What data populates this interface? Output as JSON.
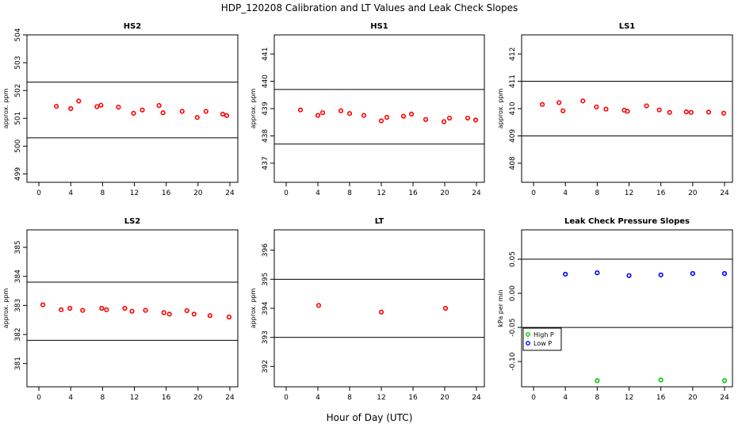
{
  "figure": {
    "title": "HDP_120208  Calibration and LT Values and Leak Check Slopes",
    "xlabel": "Hour of Day (UTC)"
  },
  "chart_data": [
    {
      "id": "hs2",
      "type": "scatter",
      "title": "HS2",
      "ylabel": "approx. ppm",
      "xlim": [
        -1.5,
        25
      ],
      "ylim": [
        498.7,
        504
      ],
      "xticks": [
        0,
        4,
        8,
        12,
        16,
        20,
        24
      ],
      "yticks": [
        499,
        500,
        501,
        502,
        503,
        504
      ],
      "hlines": [
        500.3,
        502.3
      ],
      "series": [
        {
          "name": "HS2",
          "color": "#ff0000",
          "x": [
            2.2,
            4.0,
            5.0,
            7.3,
            7.8,
            10.0,
            11.9,
            13.0,
            15.1,
            15.6,
            18.0,
            19.9,
            21.0,
            23.1,
            23.6
          ],
          "y": [
            501.43,
            501.35,
            501.62,
            501.42,
            501.47,
            501.4,
            501.18,
            501.3,
            501.46,
            501.2,
            501.25,
            501.03,
            501.25,
            501.15,
            501.1
          ]
        }
      ]
    },
    {
      "id": "hs1",
      "type": "scatter",
      "title": "HS1",
      "ylabel": "approx. ppm",
      "xlim": [
        -1.5,
        25
      ],
      "ylim": [
        436.3,
        441.7
      ],
      "xticks": [
        0,
        4,
        8,
        12,
        16,
        20,
        24
      ],
      "yticks": [
        437,
        438,
        439,
        440,
        441
      ],
      "hlines": [
        437.7,
        439.7
      ],
      "series": [
        {
          "name": "HS1",
          "color": "#ff0000",
          "x": [
            1.8,
            4.0,
            4.6,
            6.9,
            8.0,
            9.8,
            12.0,
            12.7,
            14.8,
            15.8,
            17.6,
            19.9,
            20.6,
            22.9,
            23.9
          ],
          "y": [
            438.95,
            438.75,
            438.85,
            438.92,
            438.82,
            438.75,
            438.55,
            438.68,
            438.72,
            438.8,
            438.6,
            438.52,
            438.65,
            438.65,
            438.58
          ]
        }
      ]
    },
    {
      "id": "ls1",
      "type": "scatter",
      "title": "LS1",
      "ylabel": "approx. ppm",
      "xlim": [
        -1.5,
        25
      ],
      "ylim": [
        407.3,
        412.7
      ],
      "xticks": [
        0,
        4,
        8,
        12,
        16,
        20,
        24
      ],
      "yticks": [
        408,
        409,
        410,
        411,
        412
      ],
      "hlines": [
        409.0,
        411.0
      ],
      "series": [
        {
          "name": "LS1",
          "color": "#ff0000",
          "x": [
            1.1,
            3.2,
            3.7,
            6.2,
            7.9,
            9.1,
            11.4,
            11.8,
            14.2,
            15.8,
            17.1,
            19.2,
            19.8,
            22.0,
            23.9
          ],
          "y": [
            410.15,
            410.22,
            409.92,
            410.28,
            410.06,
            409.98,
            409.94,
            409.9,
            410.1,
            409.95,
            409.86,
            409.88,
            409.86,
            409.87,
            409.83
          ]
        }
      ]
    },
    {
      "id": "ls2",
      "type": "scatter",
      "title": "LS2",
      "ylabel": "approx. ppm",
      "xlim": [
        -1.5,
        25
      ],
      "ylim": [
        380.2,
        385.6
      ],
      "xticks": [
        0,
        4,
        8,
        12,
        16,
        20,
        24
      ],
      "yticks": [
        381,
        382,
        383,
        384,
        385
      ],
      "hlines": [
        381.8,
        383.8
      ],
      "series": [
        {
          "name": "LS2",
          "color": "#ff0000",
          "x": [
            0.5,
            2.8,
            3.9,
            5.5,
            7.9,
            8.5,
            10.8,
            11.7,
            13.4,
            15.7,
            16.4,
            18.6,
            19.5,
            21.5,
            23.9
          ],
          "y": [
            383.02,
            382.85,
            382.9,
            382.83,
            382.9,
            382.85,
            382.9,
            382.8,
            382.83,
            382.75,
            382.7,
            382.82,
            382.7,
            382.65,
            382.6
          ]
        }
      ]
    },
    {
      "id": "lt",
      "type": "scatter",
      "title": "LT",
      "ylabel": "approx. ppm",
      "xlim": [
        -1.5,
        25
      ],
      "ylim": [
        391.3,
        396.7
      ],
      "xticks": [
        0,
        4,
        8,
        12,
        16,
        20,
        24
      ],
      "yticks": [
        392,
        393,
        394,
        395,
        396
      ],
      "hlines": [
        393.0,
        395.0
      ],
      "series": [
        {
          "name": "LT",
          "color": "#ff0000",
          "x": [
            4.1,
            12.0,
            20.1
          ],
          "y": [
            394.1,
            393.87,
            394.0
          ]
        }
      ]
    },
    {
      "id": "leak",
      "type": "scatter",
      "title": "Leak Check Pressure Slopes",
      "ylabel": "kPa per min",
      "xlim": [
        -1.5,
        25
      ],
      "ylim": [
        -0.137,
        0.093
      ],
      "xticks": [
        0,
        4,
        8,
        12,
        16,
        20,
        24
      ],
      "yticks": [
        -0.1,
        -0.05,
        0.0,
        0.05
      ],
      "ytick_labels": [
        "-0.10",
        "-0.05",
        "0.00",
        "0.05"
      ],
      "hlines": [
        -0.05,
        0.05
      ],
      "legend": {
        "position": "left",
        "entries": [
          "High P",
          "Low P"
        ]
      },
      "series": [
        {
          "name": "High P",
          "color": "#00cc00",
          "x": [
            8.0,
            16.0,
            24.0
          ],
          "y": [
            -0.128,
            -0.127,
            -0.128
          ]
        },
        {
          "name": "Low P",
          "color": "#0000ff",
          "x": [
            4.0,
            8.0,
            12.0,
            16.0,
            20.0,
            24.0
          ],
          "y": [
            0.028,
            0.03,
            0.026,
            0.027,
            0.029,
            0.029
          ]
        }
      ]
    }
  ]
}
